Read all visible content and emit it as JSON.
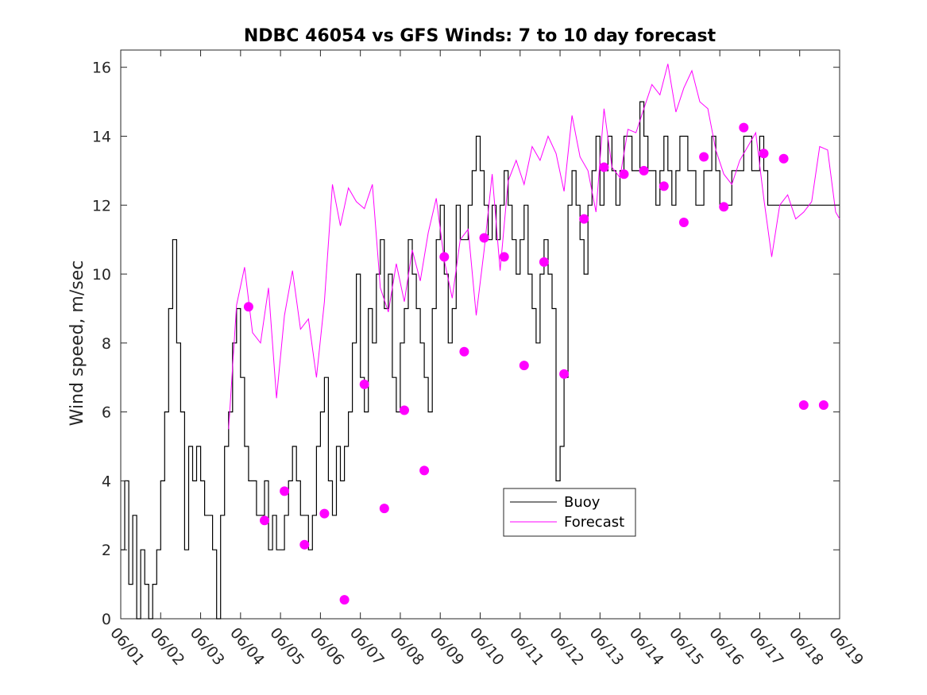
{
  "chart_data": {
    "type": "line",
    "title": "NDBC 46054 vs GFS Winds: 7 to 10 day forecast",
    "xlabel": "",
    "ylabel": "Wind speed, m/sec",
    "xlim": [
      0,
      18
    ],
    "ylim": [
      0,
      16.5
    ],
    "x_ticks": [
      "06/01",
      "06/02",
      "06/03",
      "06/04",
      "06/05",
      "06/06",
      "06/07",
      "06/08",
      "06/09",
      "06/10",
      "06/11",
      "06/12",
      "06/13",
      "06/14",
      "06/15",
      "06/16",
      "06/17",
      "06/18",
      "06/19"
    ],
    "y_ticks": [
      0,
      2,
      4,
      6,
      8,
      10,
      12,
      14,
      16
    ],
    "grid": false,
    "legend": {
      "placement": "inside-bottom-center",
      "entries": [
        {
          "name": "Buoy",
          "color": "#000000"
        },
        {
          "name": "Forecast",
          "color": "#ff00ff"
        }
      ]
    },
    "series": [
      {
        "name": "Buoy",
        "color": "#000000",
        "x": [
          0.0,
          0.1,
          0.2,
          0.3,
          0.4,
          0.5,
          0.6,
          0.7,
          0.8,
          0.9,
          1.0,
          1.1,
          1.2,
          1.3,
          1.4,
          1.5,
          1.6,
          1.7,
          1.8,
          1.9,
          2.0,
          2.1,
          2.2,
          2.3,
          2.4,
          2.5,
          2.6,
          2.7,
          2.8,
          2.9,
          3.0,
          3.1,
          3.2,
          3.3,
          3.4,
          3.5,
          3.6,
          3.7,
          3.8,
          3.9,
          4.0,
          4.1,
          4.2,
          4.3,
          4.4,
          4.5,
          4.6,
          4.7,
          4.8,
          4.9,
          5.0,
          5.1,
          5.2,
          5.3,
          5.4,
          5.5,
          5.6,
          5.7,
          5.8,
          5.9,
          6.0,
          6.1,
          6.2,
          6.3,
          6.4,
          6.5,
          6.6,
          6.7,
          6.8,
          6.9,
          7.0,
          7.1,
          7.2,
          7.3,
          7.4,
          7.5,
          7.6,
          7.7,
          7.8,
          7.9,
          8.0,
          8.1,
          8.2,
          8.3,
          8.4,
          8.5,
          8.6,
          8.7,
          8.8,
          8.9,
          9.0,
          9.1,
          9.2,
          9.3,
          9.4,
          9.5,
          9.6,
          9.7,
          9.8,
          9.9,
          10.0,
          10.1,
          10.2,
          10.3,
          10.4,
          10.5,
          10.6,
          10.7,
          10.8,
          10.9,
          11.0,
          11.1,
          11.2,
          11.3,
          11.4,
          11.5,
          11.6,
          11.7,
          11.8,
          11.9,
          12.0,
          12.1,
          12.2,
          12.3,
          12.4,
          12.5,
          12.6,
          12.7,
          12.8,
          12.9,
          13.0,
          13.1,
          13.2,
          13.3,
          13.4,
          13.5,
          13.6,
          13.7,
          13.8,
          13.9,
          14.0,
          14.1,
          14.2,
          14.3,
          14.4,
          14.5,
          14.6,
          14.7,
          14.8,
          14.9,
          15.0,
          15.1,
          15.2,
          15.3,
          15.4,
          15.5,
          15.6,
          15.7,
          15.8,
          15.9,
          16.0,
          16.1,
          16.2,
          16.3,
          16.4,
          16.5,
          16.6,
          16.7,
          16.8,
          16.9,
          17.0,
          17.1,
          17.2,
          17.3,
          17.4,
          17.5,
          17.6,
          17.7,
          17.8,
          17.9,
          18.0
        ],
        "values": [
          2,
          4,
          1,
          3,
          0,
          2,
          1,
          0,
          1,
          2,
          4,
          6,
          9,
          11,
          8,
          6,
          2,
          5,
          4,
          5,
          4,
          3,
          3,
          2,
          0,
          3,
          5,
          6,
          8,
          9,
          7,
          5,
          4,
          4,
          3,
          3,
          4,
          2,
          3,
          2,
          2,
          3,
          4,
          5,
          4,
          3,
          3,
          2,
          3,
          5,
          6,
          7,
          4,
          3,
          5,
          4,
          5,
          6,
          8,
          10,
          7,
          6,
          9,
          8,
          10,
          11,
          9,
          10,
          7,
          6,
          8,
          9,
          11,
          10,
          9,
          8,
          7,
          6,
          9,
          11,
          12,
          10,
          8,
          9,
          12,
          11,
          11,
          12,
          13,
          14,
          13,
          12,
          11,
          12,
          11,
          12,
          13,
          12,
          11,
          10,
          11,
          12,
          10,
          9,
          8,
          10,
          11,
          10,
          9,
          4,
          5,
          7,
          12,
          13,
          12,
          11,
          10,
          12,
          13,
          14,
          12,
          13,
          14,
          13,
          12,
          13,
          14,
          14,
          13,
          13,
          15,
          14,
          13,
          13,
          12,
          13,
          14,
          13,
          12,
          13,
          14,
          14,
          13,
          13,
          12,
          12,
          13,
          13,
          14,
          13,
          12,
          12,
          12,
          13,
          13,
          13,
          14,
          14,
          13,
          13,
          14,
          13,
          12,
          12,
          12,
          12,
          12,
          12,
          12,
          12,
          12,
          12,
          12,
          12,
          12,
          12,
          12,
          12,
          12,
          12,
          12
        ]
      },
      {
        "name": "Forecast",
        "color": "#ff00ff",
        "dots": {
          "x": [
            3.2,
            3.6,
            4.1,
            4.6,
            5.1,
            5.6,
            6.1,
            6.6,
            7.1,
            7.6,
            8.1,
            8.6,
            9.1,
            9.6,
            10.1,
            10.6,
            11.1,
            11.6,
            12.1,
            12.6,
            13.1,
            13.6,
            14.1,
            14.6,
            15.1,
            15.6,
            16.1,
            16.6,
            17.1,
            17.6
          ],
          "values": [
            9.05,
            2.85,
            3.7,
            2.15,
            3.05,
            0.55,
            6.8,
            3.2,
            6.05,
            4.3,
            10.5,
            7.75,
            11.05,
            10.5,
            7.35,
            10.35,
            7.1,
            11.6,
            13.1,
            12.9,
            13.0,
            12.55,
            11.5,
            13.4,
            11.95,
            14.25,
            13.5,
            13.35,
            6.2,
            6.2
          ]
        },
        "runs": [
          {
            "x": [
              2.7,
              2.9,
              3.1,
              3.3,
              3.5,
              3.7,
              3.9,
              4.1,
              4.3,
              4.5,
              4.7,
              4.9,
              5.1,
              5.3,
              5.5,
              5.7,
              5.9,
              6.1,
              6.3,
              6.5,
              6.7,
              6.9,
              7.1,
              7.3,
              7.5,
              7.7,
              7.9,
              8.1,
              8.3,
              8.5,
              8.7,
              8.9,
              9.1,
              9.3,
              9.5,
              9.7,
              9.9,
              10.1,
              10.3,
              10.5,
              10.7,
              10.9,
              11.1,
              11.3,
              11.5,
              11.7,
              11.9,
              12.1,
              12.3,
              12.5,
              12.7,
              12.9,
              13.1,
              13.3,
              13.5,
              13.7,
              13.9,
              14.1,
              14.3,
              14.5,
              14.7,
              14.9,
              15.1,
              15.3,
              15.5,
              15.7,
              15.9,
              16.1,
              16.3,
              16.5,
              16.7,
              16.9,
              17.1,
              17.3,
              17.5,
              17.7,
              17.9,
              18.0
            ],
            "values": [
              5.5,
              9.1,
              10.2,
              8.3,
              8.0,
              9.6,
              6.4,
              8.8,
              10.1,
              8.4,
              8.7,
              7.0,
              9.2,
              12.6,
              11.4,
              12.5,
              12.1,
              11.9,
              12.6,
              9.6,
              8.9,
              10.3,
              9.2,
              10.7,
              9.8,
              11.2,
              12.2,
              10.4,
              9.3,
              11.0,
              11.3,
              8.8,
              10.7,
              12.9,
              10.1,
              12.7,
              13.3,
              12.6,
              13.7,
              13.3,
              14.0,
              13.5,
              12.4,
              14.6,
              13.4,
              13.0,
              11.8,
              14.8,
              13.1,
              12.8,
              14.2,
              14.1,
              14.8,
              15.5,
              15.2,
              16.1,
              14.7,
              15.4,
              15.9,
              15.0,
              14.8,
              13.6,
              12.9,
              12.6,
              13.3,
              13.7,
              14.1,
              12.2,
              10.5,
              12.0,
              12.3,
              11.6,
              11.8,
              12.1,
              13.7,
              13.6,
              11.8,
              11.6
            ]
          }
        ]
      }
    ]
  }
}
